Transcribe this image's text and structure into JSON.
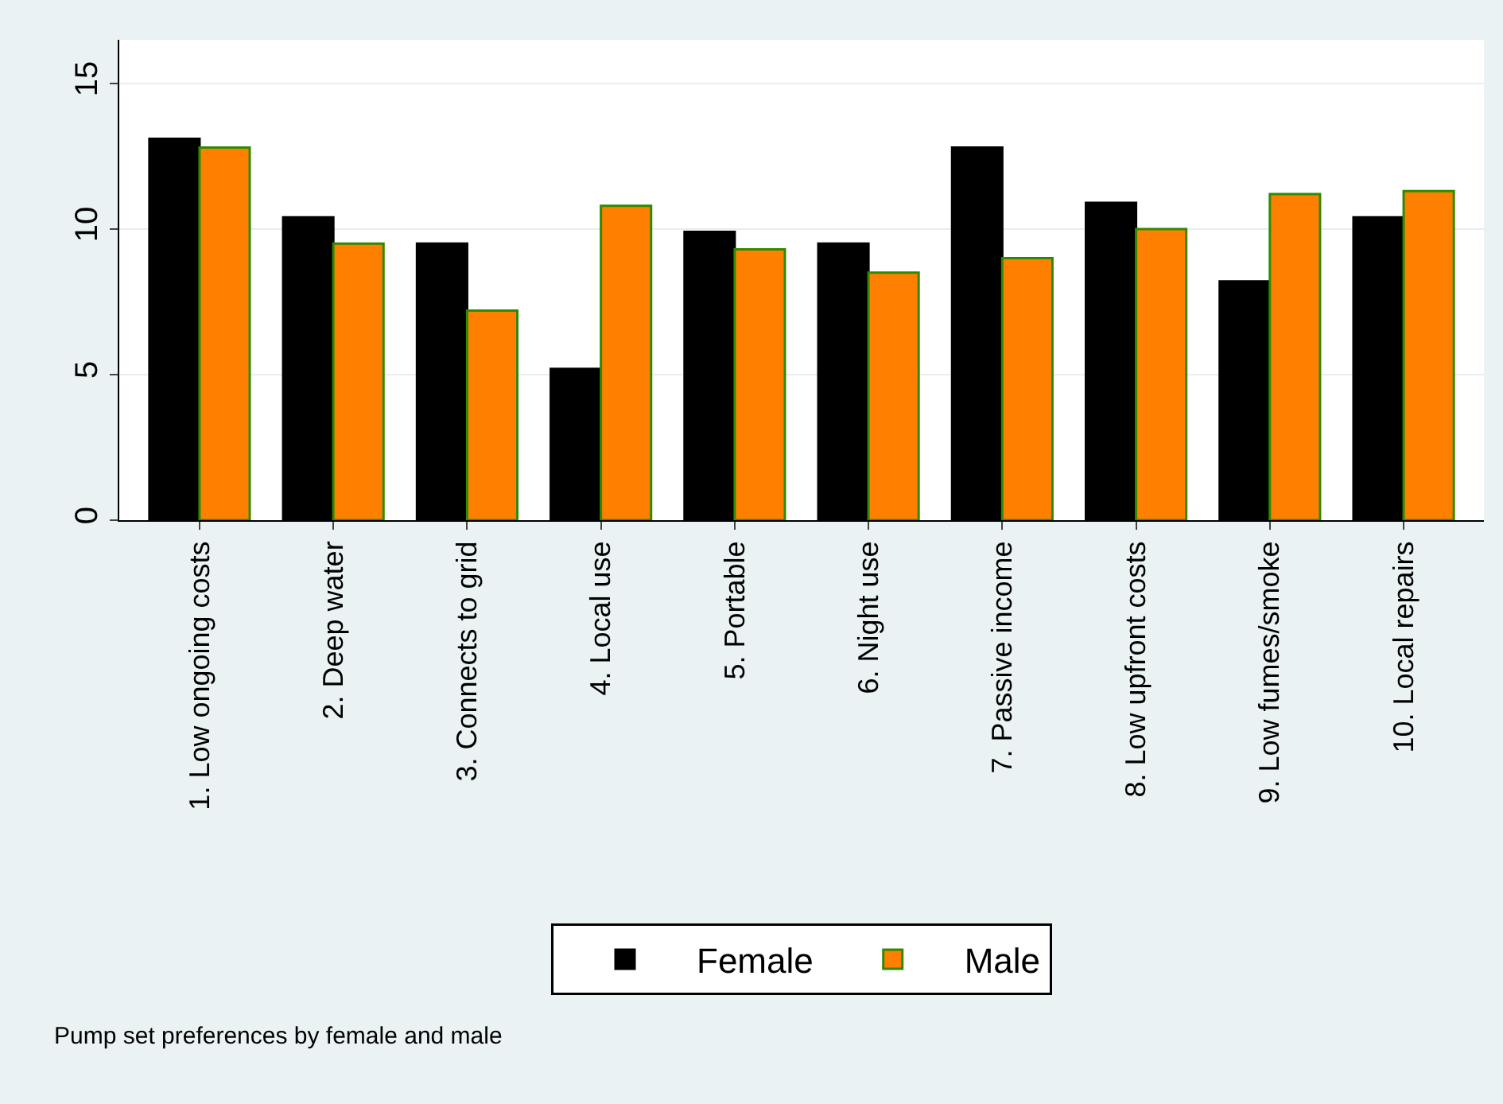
{
  "chart_data": {
    "type": "bar",
    "categories": [
      "1. Low ongoing costs",
      "2. Deep water",
      "3. Connects to grid",
      "4. Local use",
      "5. Portable",
      "6. Night use",
      "7. Passive income",
      "8. Low upfront costs",
      "9. Low fumes/smoke",
      "10. Local repairs"
    ],
    "series": [
      {
        "name": "Female",
        "color": "#000000",
        "values": [
          13.1,
          10.4,
          9.5,
          5.2,
          9.9,
          9.5,
          12.8,
          10.9,
          8.2,
          10.4
        ]
      },
      {
        "name": "Male",
        "color": "#ff8000",
        "values": [
          12.8,
          9.5,
          7.2,
          10.8,
          9.3,
          8.5,
          9.0,
          10.0,
          11.2,
          11.3
        ]
      }
    ],
    "ylim": [
      0,
      16.5
    ],
    "yticks": [
      0,
      5,
      10,
      15
    ],
    "grid": "y",
    "legend": "bottom",
    "annotations": [
      "Pump set preferences by female and male"
    ]
  }
}
